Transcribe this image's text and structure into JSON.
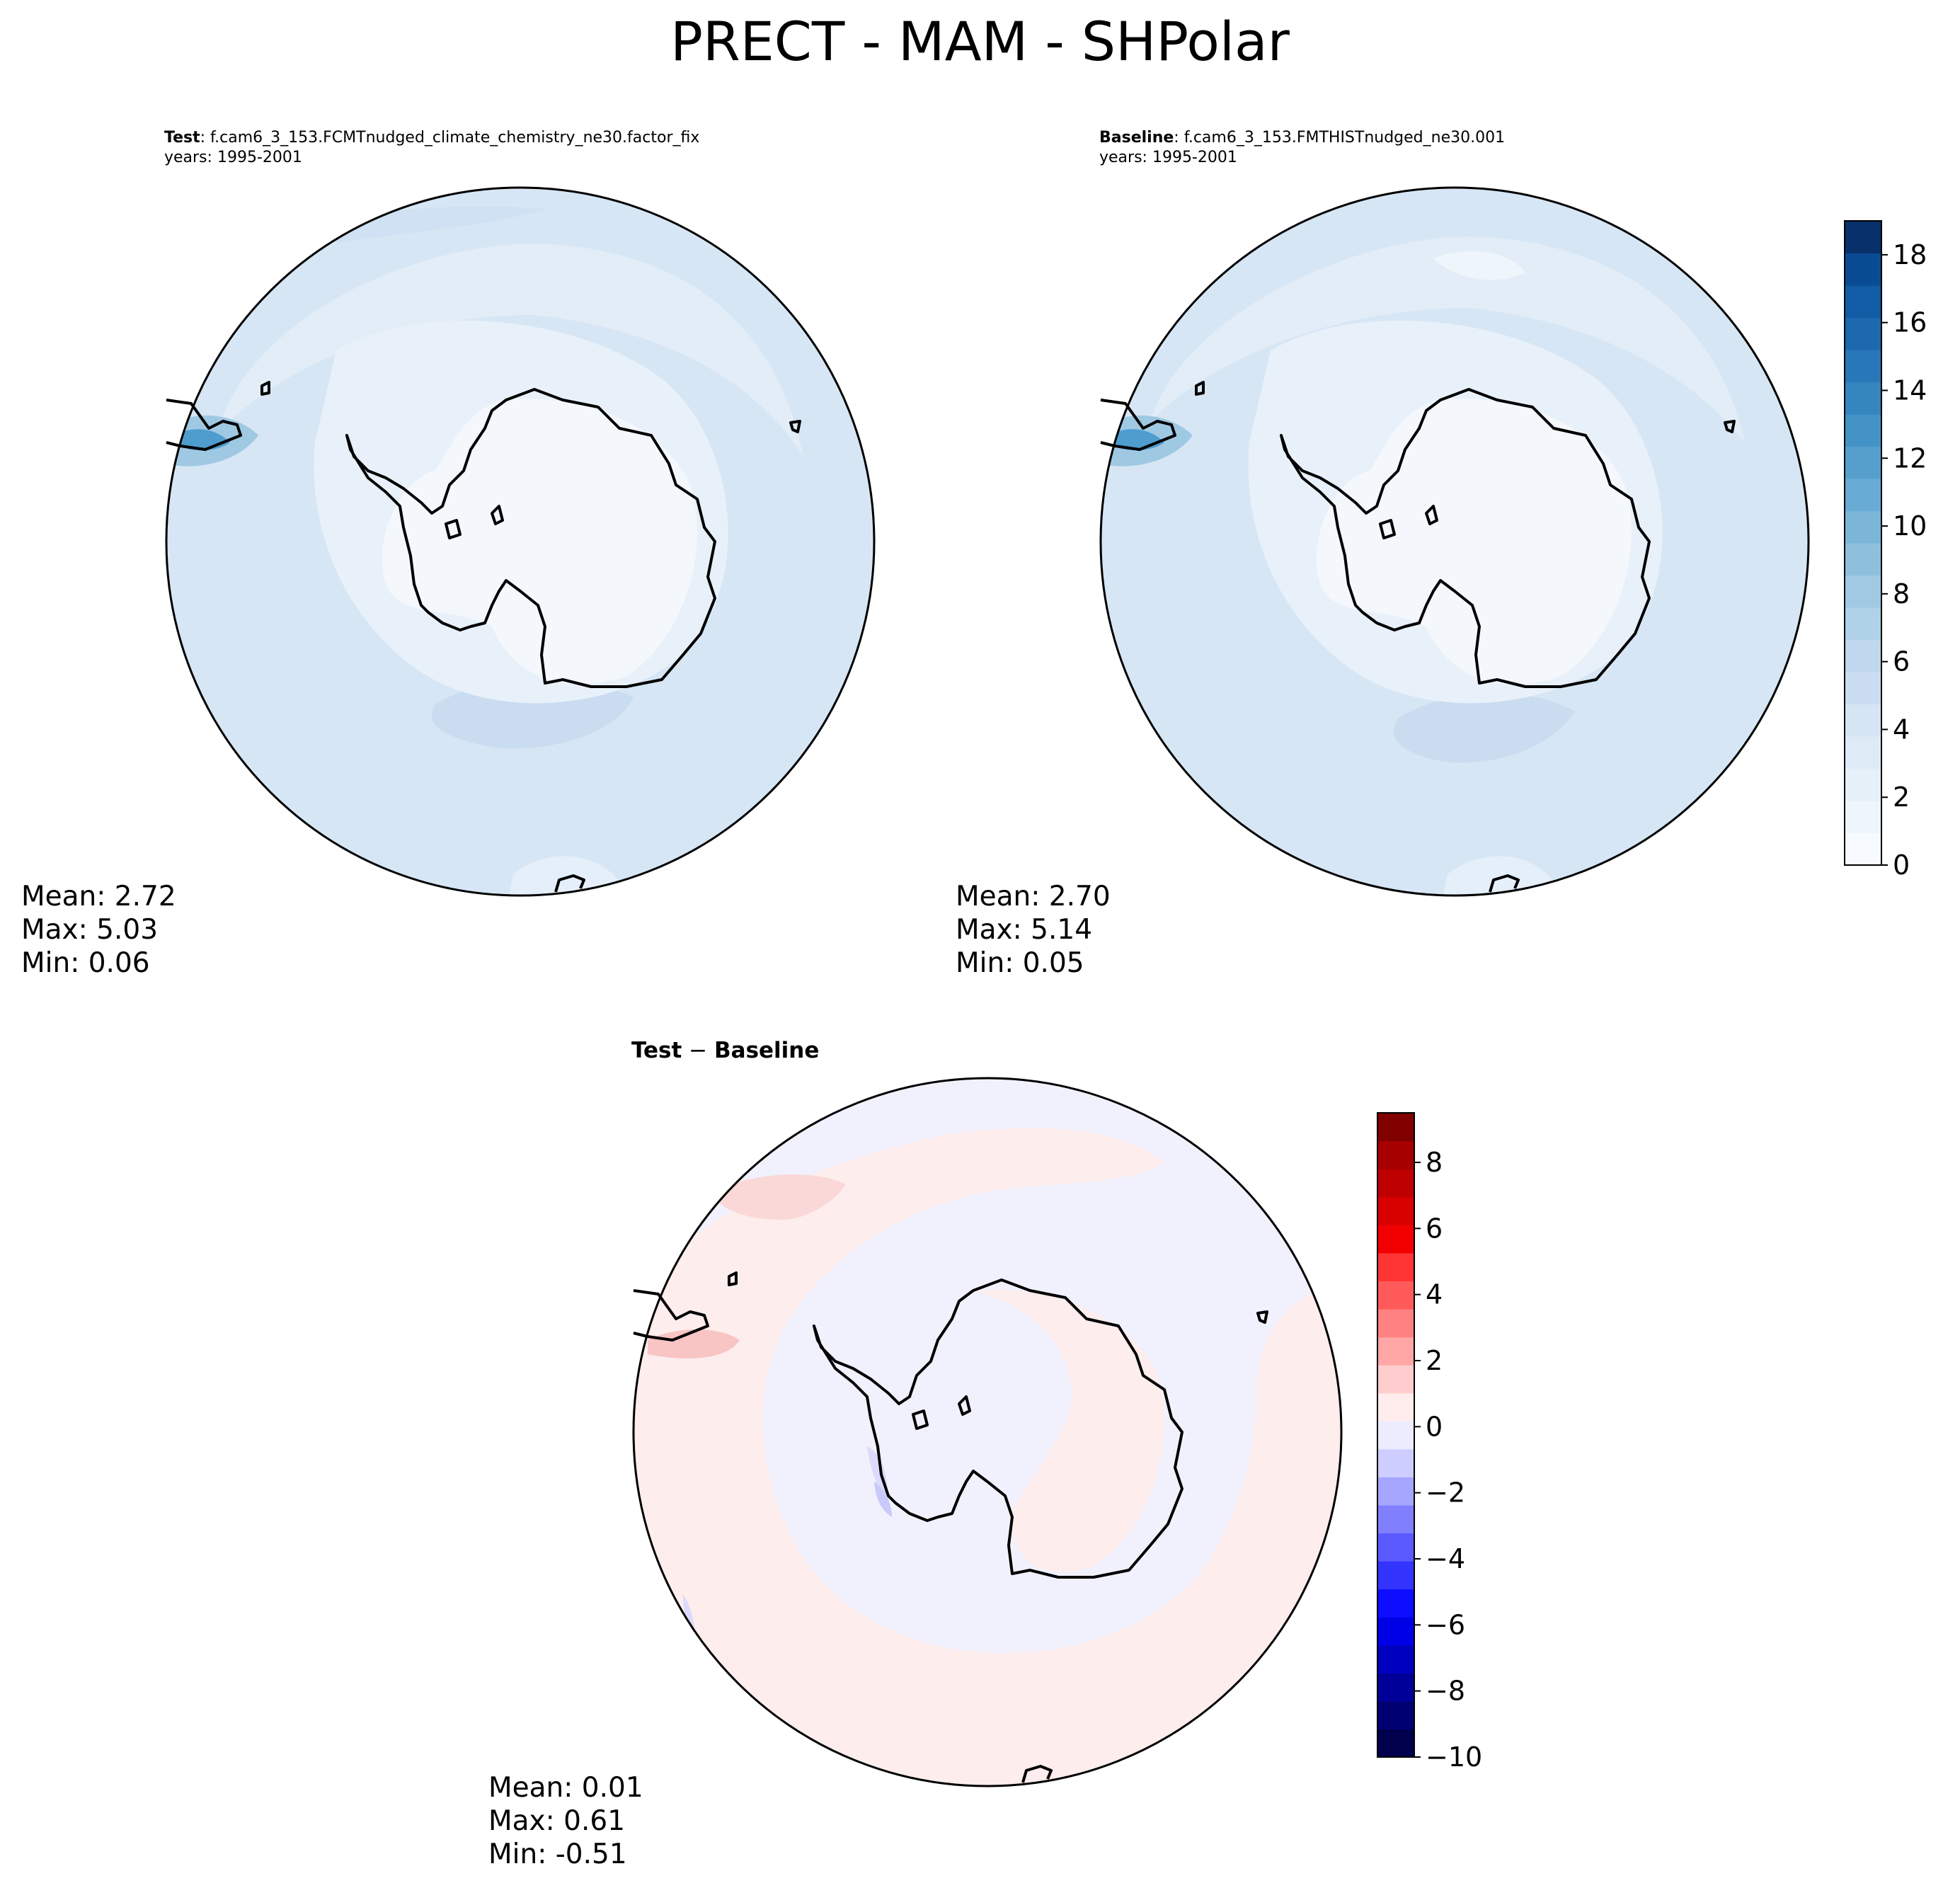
{
  "figure": {
    "title": "PRECT - MAM - SHPolar"
  },
  "panels": {
    "test": {
      "label": "Test",
      "case": ": f.cam6_3_153.FCMTnudged_climate_chemistry_ne30.factor_fix",
      "years": "years: 1995-2001",
      "stats": {
        "mean": "Mean:  2.72",
        "max": "Max:  5.03",
        "min": "Min:  0.06"
      }
    },
    "baseline": {
      "label": "Baseline",
      "case": ": f.cam6_3_153.FMTHISTnudged_ne30.001",
      "years": "years: 1995-2001",
      "stats": {
        "mean": "Mean:  2.70",
        "max": "Max:  5.14",
        "min": "Min:  0.05"
      }
    },
    "diff": {
      "label_a": "Test",
      "sep": " − ",
      "label_b": "Baseline",
      "stats": {
        "mean": "Mean:  0.01",
        "max": "Max:  0.61",
        "min": "Min: -0.51"
      }
    }
  },
  "colorbars": {
    "prect": {
      "colormap": "Blues",
      "range": [
        0,
        19
      ],
      "ticks": [
        "0",
        "2",
        "4",
        "6",
        "8",
        "10",
        "12",
        "14",
        "16",
        "18"
      ],
      "colors": [
        "#f7fbff",
        "#eef5fc",
        "#e6f0f9",
        "#deebf7",
        "#d5e5f4",
        "#cbdef1",
        "#bfd8ed",
        "#b0d2e8",
        "#a0cae4",
        "#8ec0de",
        "#7bb6d9",
        "#68abd4",
        "#569fcd",
        "#4493c7",
        "#3585bf",
        "#2877b8",
        "#1c69af",
        "#125ba5",
        "#0a4c94",
        "#08306b"
      ]
    },
    "diff": {
      "colormap": "seismic",
      "range": [
        -10,
        9.5
      ],
      "ticks": [
        "−10",
        "−8",
        "−6",
        "−4",
        "−2",
        "0",
        "2",
        "4",
        "6",
        "8"
      ],
      "colors": [
        "#00004c",
        "#000072",
        "#000099",
        "#0000c0",
        "#0000e6",
        "#0d0dff",
        "#3434ff",
        "#5a5aff",
        "#8080ff",
        "#a6a6ff",
        "#cdcdff",
        "#ececff",
        "#ffecec",
        "#ffcdcd",
        "#ffa6a6",
        "#ff8080",
        "#ff5a5a",
        "#ff3434",
        "#f20000",
        "#d90000",
        "#bf0000",
        "#a60000",
        "#800000"
      ]
    }
  }
}
